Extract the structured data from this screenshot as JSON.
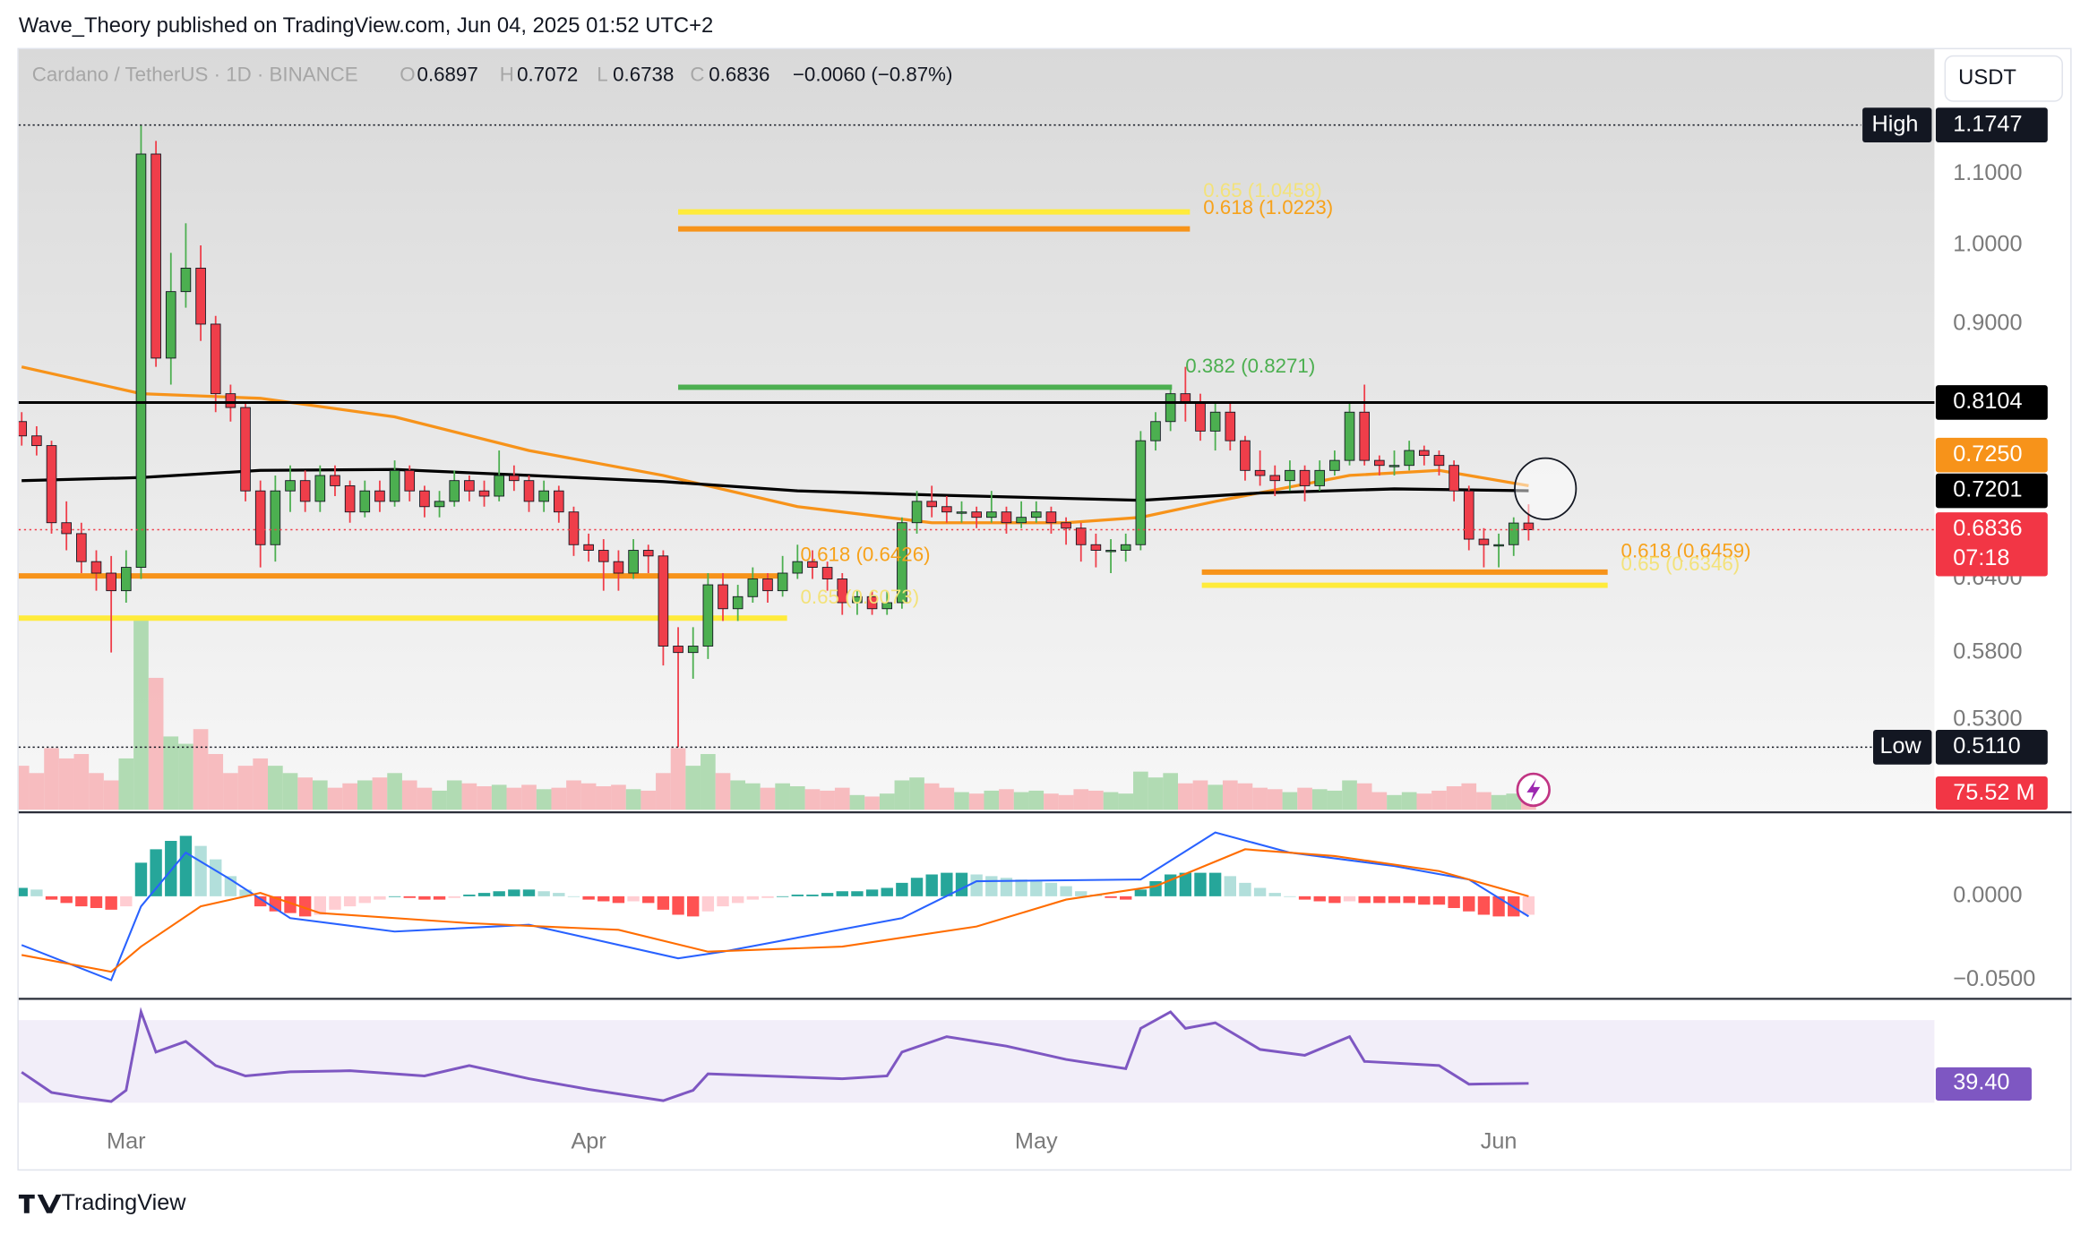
{
  "header": {
    "publisher": "Wave_Theory published on TradingView.com, Jun 04, 2025 01:52 UTC+2"
  },
  "footer": {
    "brand": "TradingView"
  },
  "chart_data": {
    "type": "candlestick",
    "title": "Cardano / TetherUS · 1D · BINANCE",
    "ohlc_letters": [
      "O",
      "H",
      "L",
      "C"
    ],
    "change": "−0.0060 (−0.87%)",
    "currency_button": "USDT",
    "log_scale": true,
    "up_color": "#4caf50",
    "down_color": "#ef3e4a",
    "xlim": [
      -0.2,
      128.2
    ],
    "xticks": [
      {
        "value": 7,
        "label": "Mar"
      },
      {
        "value": 38,
        "label": "Apr"
      },
      {
        "value": 68,
        "label": "May"
      },
      {
        "value": 99,
        "label": "Jun"
      }
    ],
    "ylim": [
      0.47,
      1.3
    ],
    "yticks": [
      {
        "value": 1.1,
        "label": "1.1000"
      },
      {
        "value": 1.0,
        "label": "1.0000"
      },
      {
        "value": 0.9,
        "label": "0.9000"
      },
      {
        "value": 0.64,
        "label": "0.6400"
      },
      {
        "value": 0.58,
        "label": "0.5800"
      },
      {
        "value": 0.53,
        "label": "0.5300"
      }
    ],
    "candles": [
      [
        0.79,
        0.8,
        0.765,
        0.775
      ],
      [
        0.775,
        0.785,
        0.755,
        0.765
      ],
      [
        0.765,
        0.77,
        0.68,
        0.69
      ],
      [
        0.69,
        0.71,
        0.665,
        0.68
      ],
      [
        0.68,
        0.69,
        0.645,
        0.655
      ],
      [
        0.655,
        0.665,
        0.63,
        0.645
      ],
      [
        0.645,
        0.66,
        0.58,
        0.63
      ],
      [
        0.63,
        0.665,
        0.62,
        0.65
      ],
      [
        0.65,
        1.1747,
        0.64,
        1.13
      ],
      [
        1.13,
        1.15,
        0.85,
        0.86
      ],
      [
        0.86,
        0.99,
        0.83,
        0.94
      ],
      [
        0.94,
        1.03,
        0.92,
        0.97
      ],
      [
        0.97,
        1.0,
        0.88,
        0.9
      ],
      [
        0.9,
        0.91,
        0.8,
        0.82
      ],
      [
        0.82,
        0.83,
        0.79,
        0.805
      ],
      [
        0.805,
        0.81,
        0.71,
        0.72
      ],
      [
        0.72,
        0.73,
        0.65,
        0.67
      ],
      [
        0.67,
        0.735,
        0.655,
        0.72
      ],
      [
        0.72,
        0.745,
        0.7,
        0.73
      ],
      [
        0.73,
        0.74,
        0.7,
        0.71
      ],
      [
        0.71,
        0.745,
        0.7,
        0.735
      ],
      [
        0.735,
        0.745,
        0.715,
        0.725
      ],
      [
        0.725,
        0.73,
        0.69,
        0.7
      ],
      [
        0.7,
        0.73,
        0.695,
        0.72
      ],
      [
        0.72,
        0.73,
        0.7,
        0.71
      ],
      [
        0.71,
        0.75,
        0.705,
        0.74
      ],
      [
        0.74,
        0.745,
        0.71,
        0.72
      ],
      [
        0.72,
        0.725,
        0.695,
        0.705
      ],
      [
        0.705,
        0.72,
        0.695,
        0.71
      ],
      [
        0.71,
        0.74,
        0.705,
        0.73
      ],
      [
        0.73,
        0.735,
        0.71,
        0.72
      ],
      [
        0.72,
        0.73,
        0.705,
        0.715
      ],
      [
        0.715,
        0.76,
        0.71,
        0.735
      ],
      [
        0.735,
        0.745,
        0.72,
        0.73
      ],
      [
        0.73,
        0.735,
        0.7,
        0.71
      ],
      [
        0.71,
        0.73,
        0.7,
        0.72
      ],
      [
        0.72,
        0.725,
        0.69,
        0.7
      ],
      [
        0.7,
        0.705,
        0.66,
        0.67
      ],
      [
        0.67,
        0.68,
        0.655,
        0.665
      ],
      [
        0.665,
        0.675,
        0.63,
        0.655
      ],
      [
        0.655,
        0.665,
        0.63,
        0.645
      ],
      [
        0.645,
        0.675,
        0.64,
        0.665
      ],
      [
        0.665,
        0.67,
        0.645,
        0.66
      ],
      [
        0.66,
        0.665,
        0.57,
        0.585
      ],
      [
        0.585,
        0.6,
        0.511,
        0.58
      ],
      [
        0.58,
        0.6,
        0.56,
        0.585
      ],
      [
        0.585,
        0.645,
        0.575,
        0.635
      ],
      [
        0.635,
        0.645,
        0.605,
        0.615
      ],
      [
        0.615,
        0.635,
        0.605,
        0.625
      ],
      [
        0.625,
        0.65,
        0.62,
        0.64
      ],
      [
        0.64,
        0.645,
        0.62,
        0.63
      ],
      [
        0.63,
        0.66,
        0.625,
        0.645
      ],
      [
        0.645,
        0.67,
        0.64,
        0.655
      ],
      [
        0.655,
        0.665,
        0.64,
        0.65
      ],
      [
        0.65,
        0.655,
        0.63,
        0.64
      ],
      [
        0.64,
        0.645,
        0.61,
        0.62
      ],
      [
        0.62,
        0.63,
        0.61,
        0.625
      ],
      [
        0.625,
        0.63,
        0.61,
        0.615
      ],
      [
        0.615,
        0.63,
        0.61,
        0.62
      ],
      [
        0.62,
        0.695,
        0.615,
        0.69
      ],
      [
        0.69,
        0.72,
        0.68,
        0.71
      ],
      [
        0.71,
        0.725,
        0.695,
        0.705
      ],
      [
        0.705,
        0.715,
        0.69,
        0.7
      ],
      [
        0.7,
        0.71,
        0.69,
        0.7
      ],
      [
        0.7,
        0.705,
        0.685,
        0.695
      ],
      [
        0.695,
        0.72,
        0.69,
        0.7
      ],
      [
        0.7,
        0.705,
        0.68,
        0.69
      ],
      [
        0.69,
        0.71,
        0.685,
        0.695
      ],
      [
        0.695,
        0.71,
        0.69,
        0.7
      ],
      [
        0.7,
        0.705,
        0.68,
        0.69
      ],
      [
        0.69,
        0.695,
        0.67,
        0.685
      ],
      [
        0.685,
        0.69,
        0.655,
        0.67
      ],
      [
        0.67,
        0.68,
        0.65,
        0.665
      ],
      [
        0.665,
        0.675,
        0.645,
        0.665
      ],
      [
        0.665,
        0.68,
        0.655,
        0.67
      ],
      [
        0.67,
        0.78,
        0.665,
        0.77
      ],
      [
        0.77,
        0.8,
        0.76,
        0.79
      ],
      [
        0.79,
        0.83,
        0.78,
        0.82
      ],
      [
        0.82,
        0.85,
        0.79,
        0.81
      ],
      [
        0.81,
        0.82,
        0.77,
        0.78
      ],
      [
        0.78,
        0.81,
        0.76,
        0.8
      ],
      [
        0.8,
        0.81,
        0.76,
        0.77
      ],
      [
        0.77,
        0.775,
        0.73,
        0.74
      ],
      [
        0.74,
        0.76,
        0.725,
        0.735
      ],
      [
        0.735,
        0.745,
        0.715,
        0.73
      ],
      [
        0.73,
        0.75,
        0.72,
        0.74
      ],
      [
        0.74,
        0.745,
        0.71,
        0.725
      ],
      [
        0.725,
        0.75,
        0.72,
        0.74
      ],
      [
        0.74,
        0.76,
        0.735,
        0.75
      ],
      [
        0.75,
        0.81,
        0.745,
        0.8
      ],
      [
        0.8,
        0.83,
        0.745,
        0.75
      ],
      [
        0.75,
        0.755,
        0.735,
        0.745
      ],
      [
        0.745,
        0.76,
        0.735,
        0.745
      ],
      [
        0.745,
        0.77,
        0.74,
        0.76
      ],
      [
        0.76,
        0.765,
        0.745,
        0.755
      ],
      [
        0.755,
        0.76,
        0.735,
        0.745
      ],
      [
        0.745,
        0.75,
        0.71,
        0.72
      ],
      [
        0.72,
        0.725,
        0.665,
        0.675
      ],
      [
        0.675,
        0.685,
        0.65,
        0.67
      ],
      [
        0.67,
        0.68,
        0.65,
        0.67
      ],
      [
        0.67,
        0.695,
        0.66,
        0.6897
      ],
      [
        0.6897,
        0.7072,
        0.6738,
        0.6836
      ]
    ],
    "last_price_countdown": "07:18",
    "extremes": {
      "high_text": "High",
      "low_text": "Low",
      "low_label": "0.5110"
    },
    "hlines": [
      {
        "value": 0.8104,
        "color": "#000000"
      }
    ],
    "moving_averages": [
      {
        "color": "#f7931a",
        "x": [
          0,
          8,
          16,
          25,
          34,
          43,
          52,
          61,
          70,
          75,
          80,
          89,
          95,
          101
        ],
        "values": [
          0.85,
          0.82,
          0.815,
          0.795,
          0.76,
          0.735,
          0.705,
          0.69,
          0.69,
          0.695,
          0.71,
          0.735,
          0.74,
          0.725
        ],
        "last_label": "0.7250"
      },
      {
        "color": "#000000",
        "x": [
          0,
          8,
          16,
          25,
          34,
          43,
          52,
          61,
          75,
          83,
          92,
          101
        ],
        "values": [
          0.73,
          0.733,
          0.74,
          0.741,
          0.735,
          0.729,
          0.72,
          0.716,
          0.711,
          0.718,
          0.722,
          0.7201
        ]
      }
    ],
    "fibs": [
      {
        "label": "0.65 (1.0458)",
        "value": 1.0458,
        "color": "#ffeb3b",
        "text_color": "#f3e27a",
        "x": [
          44,
          78.3
        ]
      },
      {
        "label": "0.618 (1.0223)",
        "value": 1.0223,
        "color": "#f7931a",
        "text_color": "#f7a21b",
        "x": [
          44,
          78.3
        ]
      },
      {
        "label": "0.382 (0.8271)",
        "value": 0.8271,
        "color": "#4caf50",
        "text_color": "#4caf50",
        "x": [
          44,
          77.1
        ]
      },
      {
        "label": "0.618 (0.6426)",
        "value": 0.6426,
        "color": "#f7931a",
        "text_color": "#f7a21b",
        "x": [
          -0.2,
          51.3
        ]
      },
      {
        "label": "0.65 (0.6073)",
        "value": 0.6073,
        "color": "#ffeb3b",
        "text_color": "#f3e27a",
        "x": [
          -0.2,
          51.3
        ]
      },
      {
        "label": "0.618 (0.6459)",
        "value": 0.6459,
        "color": "#f7931a",
        "text_color": "#f7a21b",
        "x": [
          79.1,
          106.3
        ]
      },
      {
        "label": "0.65 (0.6346)",
        "value": 0.6346,
        "color": "#ffeb3b",
        "text_color": "#f3e27a",
        "x": [
          79.1,
          106.3
        ]
      }
    ],
    "volume": {
      "ylim": [
        0,
        1300
      ],
      "last_label": "75.52 M",
      "values": [
        300,
        250,
        420,
        350,
        380,
        250,
        200,
        350,
        1300,
        900,
        500,
        450,
        550,
        380,
        250,
        300,
        350,
        300,
        250,
        220,
        200,
        150,
        180,
        200,
        220,
        250,
        200,
        150,
        130,
        200,
        180,
        160,
        170,
        150,
        170,
        140,
        150,
        200,
        180,
        160,
        170,
        140,
        130,
        250,
        420,
        300,
        380,
        250,
        200,
        180,
        150,
        180,
        160,
        140,
        130,
        150,
        100,
        90,
        110,
        200,
        220,
        180,
        150,
        120,
        110,
        130,
        140,
        120,
        130,
        110,
        100,
        140,
        130,
        120,
        110,
        260,
        220,
        250,
        180,
        200,
        170,
        200,
        180,
        150,
        140,
        120,
        150,
        140,
        130,
        200,
        180,
        120,
        100,
        120,
        110,
        130,
        160,
        180,
        120,
        100,
        110,
        75.52
      ]
    },
    "macd": {
      "ylim": [
        -0.0595,
        0.0484
      ],
      "yticks": [
        {
          "value": 0,
          "label": "0.0000"
        },
        {
          "value": -0.05,
          "label": "−0.0500"
        }
      ],
      "histogram": [
        0.005,
        0.004,
        -0.002,
        -0.004,
        -0.006,
        -0.007,
        -0.008,
        -0.006,
        0.02,
        0.028,
        0.033,
        0.036,
        0.03,
        0.022,
        0.012,
        0.004,
        -0.006,
        -0.009,
        -0.01,
        -0.012,
        -0.011,
        -0.008,
        -0.006,
        -0.004,
        -0.002,
        0,
        -0.001,
        -0.002,
        -0.002,
        -0.001,
        0.001,
        0.002,
        0.003,
        0.004,
        0.004,
        0.003,
        0.002,
        0,
        -0.002,
        -0.003,
        -0.004,
        -0.003,
        -0.004,
        -0.008,
        -0.011,
        -0.012,
        -0.009,
        -0.006,
        -0.004,
        -0.002,
        -0.001,
        0,
        0.001,
        0.001,
        0.002,
        0.003,
        0.003,
        0.004,
        0.005,
        0.008,
        0.011,
        0.013,
        0.014,
        0.014,
        0.013,
        0.012,
        0.011,
        0.01,
        0.009,
        0.008,
        0.006,
        0.003,
        0.001,
        -0.001,
        -0.002,
        0.004,
        0.009,
        0.013,
        0.014,
        0.014,
        0.014,
        0.012,
        0.008,
        0.005,
        0.002,
        0,
        -0.002,
        -0.003,
        -0.004,
        -0.003,
        -0.004,
        -0.004,
        -0.004,
        -0.004,
        -0.005,
        -0.005,
        -0.007,
        -0.009,
        -0.011,
        -0.012,
        -0.012,
        -0.011
      ],
      "macd_line": {
        "color": "#2962ff",
        "x": [
          0,
          6,
          8,
          11,
          14,
          18,
          25,
          34,
          44,
          47,
          59,
          64,
          75,
          80,
          85,
          92,
          97,
          101
        ],
        "values": [
          -0.029,
          -0.05,
          -0.006,
          0.026,
          0.01,
          -0.013,
          -0.021,
          -0.017,
          -0.037,
          -0.033,
          -0.013,
          0.009,
          0.01,
          0.038,
          0.026,
          0.018,
          0.01,
          -0.012
        ]
      },
      "signal_line": {
        "color": "#ff6d00",
        "x": [
          0,
          6,
          8,
          12,
          16,
          20,
          30,
          40,
          46,
          55,
          64,
          70,
          76,
          82,
          88,
          95,
          101
        ],
        "values": [
          -0.035,
          -0.045,
          -0.03,
          -0.006,
          0.002,
          -0.01,
          -0.016,
          -0.02,
          -0.033,
          -0.03,
          -0.018,
          -0.002,
          0.006,
          0.028,
          0.024,
          0.015,
          0
        ]
      }
    },
    "rsi": {
      "ylim": [
        22.3,
        79
      ],
      "band": [
        30,
        70
      ],
      "color": "#7e57c2",
      "last_label": "39.40",
      "x": [
        0,
        2,
        4,
        6,
        7,
        8,
        9,
        11,
        13,
        15,
        18,
        22,
        27,
        30,
        34,
        38,
        43,
        45,
        46,
        55,
        58,
        59,
        62,
        66,
        70,
        74,
        75,
        77,
        78,
        80,
        83,
        86,
        89,
        90,
        95,
        97,
        101
      ],
      "values": [
        44.8,
        35,
        32.6,
        30.6,
        36,
        74,
        54.5,
        59.7,
        48,
        43,
        45,
        45.5,
        43,
        48,
        41.6,
        36.5,
        31,
        36,
        44,
        41.6,
        43,
        54.5,
        62,
        57.4,
        51,
        46.5,
        66,
        74,
        66,
        68.7,
        55.8,
        53,
        62,
        50,
        48,
        39,
        39.4
      ]
    }
  }
}
